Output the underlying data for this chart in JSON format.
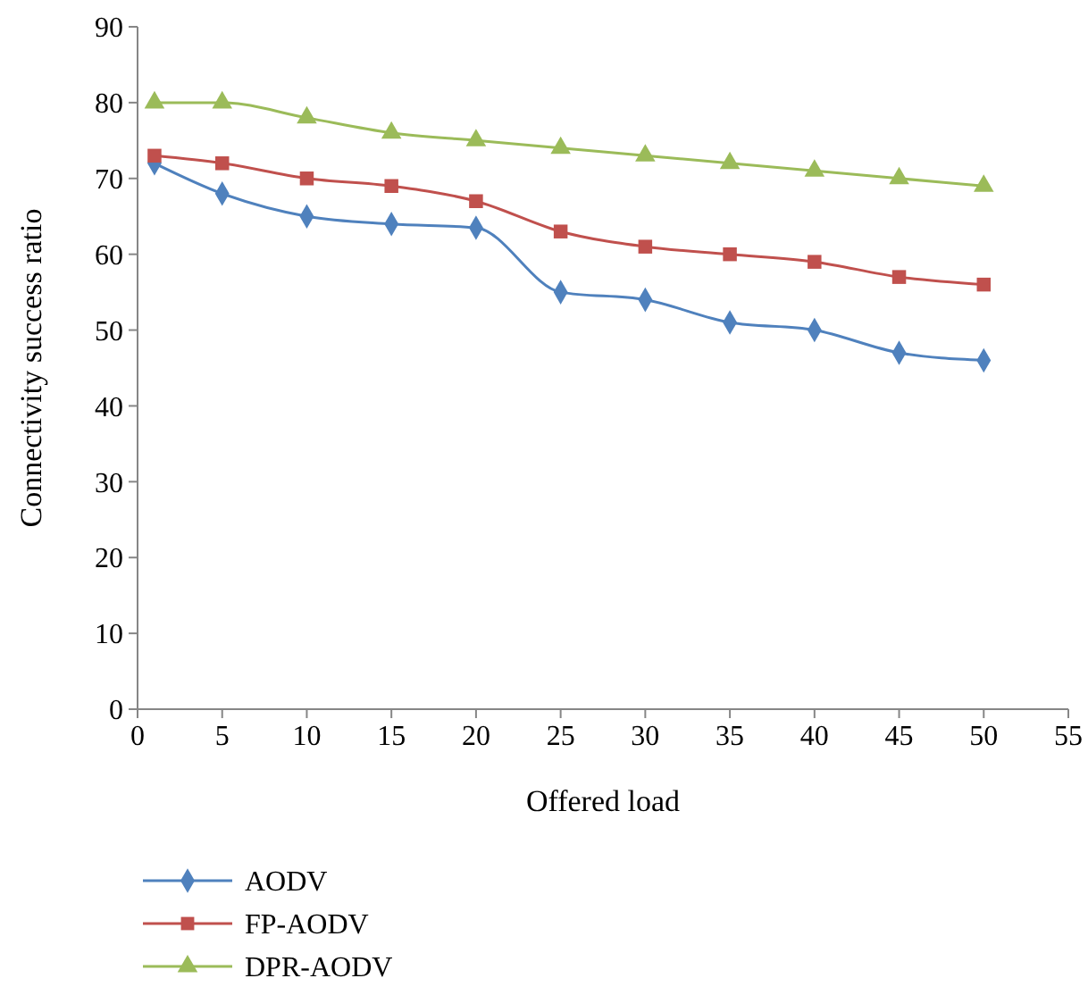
{
  "chart_data": {
    "type": "line",
    "xlabel": "Offered load",
    "ylabel": "Connectivity success ratio",
    "x": [
      1,
      5,
      10,
      15,
      20,
      25,
      30,
      35,
      40,
      45,
      50
    ],
    "series": [
      {
        "name": "AODV",
        "color": "#4f81bd",
        "marker": "diamond",
        "values": [
          72,
          68,
          65,
          64,
          63.5,
          55,
          54,
          51,
          50,
          47,
          46
        ]
      },
      {
        "name": "FP-AODV",
        "color": "#c0504d",
        "marker": "square",
        "values": [
          73,
          72,
          70,
          69,
          67,
          63,
          61,
          60,
          59,
          57,
          56
        ]
      },
      {
        "name": "DPR-AODV",
        "color": "#9bbb59",
        "marker": "triangle",
        "values": [
          80,
          80,
          78,
          76,
          75,
          74,
          73,
          72,
          71,
          70,
          69
        ]
      }
    ],
    "xlim": [
      0,
      55
    ],
    "xticks": [
      0,
      5,
      10,
      15,
      20,
      25,
      30,
      35,
      40,
      45,
      50,
      55
    ],
    "ylim": [
      0,
      90
    ],
    "yticks": [
      0,
      10,
      20,
      30,
      40,
      50,
      60,
      70,
      80,
      90
    ],
    "grid": false,
    "legend": "bottom",
    "line_style": "solid"
  }
}
